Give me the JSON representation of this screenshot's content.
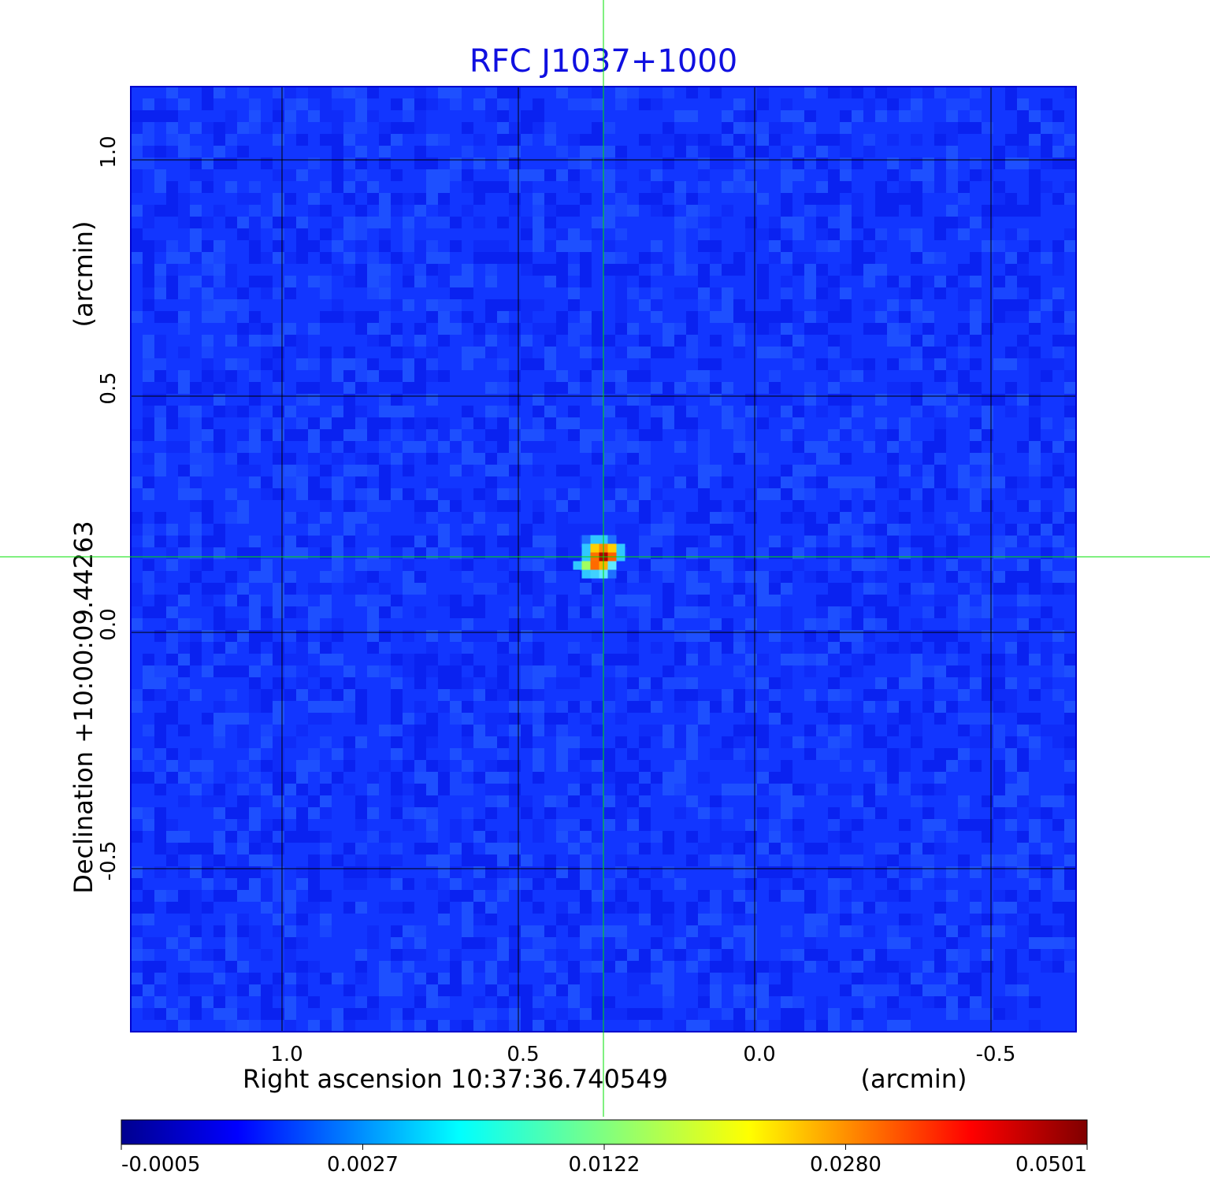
{
  "chart_data": {
    "type": "heatmap",
    "title": "RFC J1037+1000",
    "xlabel": "Right ascension  10:37:36.740549",
    "xlabel_unit": "(arcmin)",
    "ylabel": "Declination  +10:00:09.44263",
    "ylabel_unit": "(arcmin)",
    "x_ticks": [
      {
        "value": 1.0,
        "label": "1.0"
      },
      {
        "value": 0.5,
        "label": "0.5"
      },
      {
        "value": 0.0,
        "label": "0.0"
      },
      {
        "value": -0.5,
        "label": "-0.5"
      }
    ],
    "y_ticks": [
      {
        "value": 1.0,
        "label": "1.0"
      },
      {
        "value": 0.5,
        "label": "0.5"
      },
      {
        "value": 0.0,
        "label": "0.0"
      },
      {
        "value": -0.5,
        "label": "-0.5"
      }
    ],
    "xlim": [
      1.32,
      -0.68
    ],
    "ylim": [
      -0.845,
      1.155
    ],
    "x_reversed": true,
    "grid": true,
    "source": {
      "x": 0.32,
      "y": 0.16,
      "peak": 0.0501
    },
    "crosshair": {
      "x": 0.32,
      "y": 0.16,
      "color": "#00e000"
    },
    "colormap": "jet",
    "colorbar": {
      "orientation": "horizontal",
      "placement": "bottom",
      "ticks": [
        "-0.0005",
        "0.0027",
        "0.0122",
        "0.0280",
        "0.0501"
      ]
    },
    "colors": {
      "title": "#1010e0",
      "background_map": "#1236ff",
      "grid": "#000000",
      "crosshair": "#00e000"
    }
  }
}
